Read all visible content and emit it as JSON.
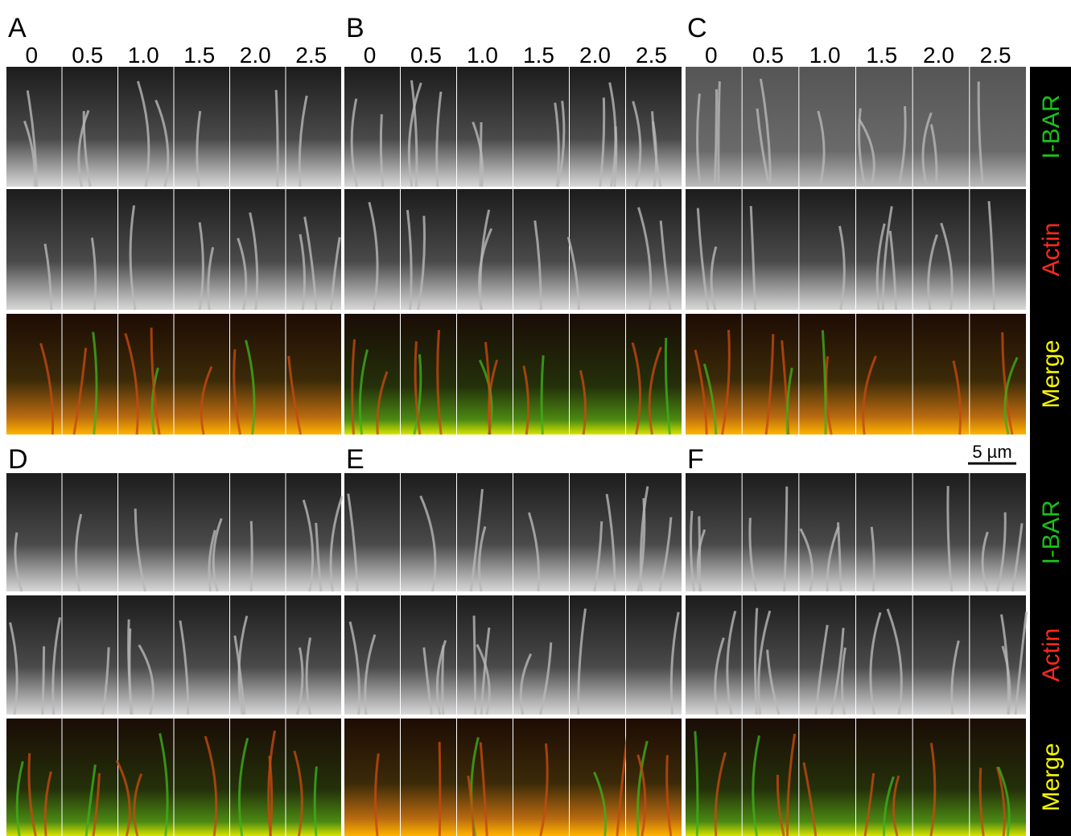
{
  "time_labels": [
    "0",
    "0.5",
    "1.0",
    "1.5",
    "2.0",
    "2.5"
  ],
  "channels": [
    {
      "name": "I-BAR",
      "color": "#19c219"
    },
    {
      "name": "Actin",
      "color": "#ff2a1a"
    },
    {
      "name": "Merge",
      "color": "#f5f500"
    }
  ],
  "panels": [
    {
      "label": "A"
    },
    {
      "label": "B"
    },
    {
      "label": "C"
    },
    {
      "label": "D"
    },
    {
      "label": "E"
    },
    {
      "label": "F"
    }
  ],
  "scale_bar": {
    "label": "5 µm"
  }
}
